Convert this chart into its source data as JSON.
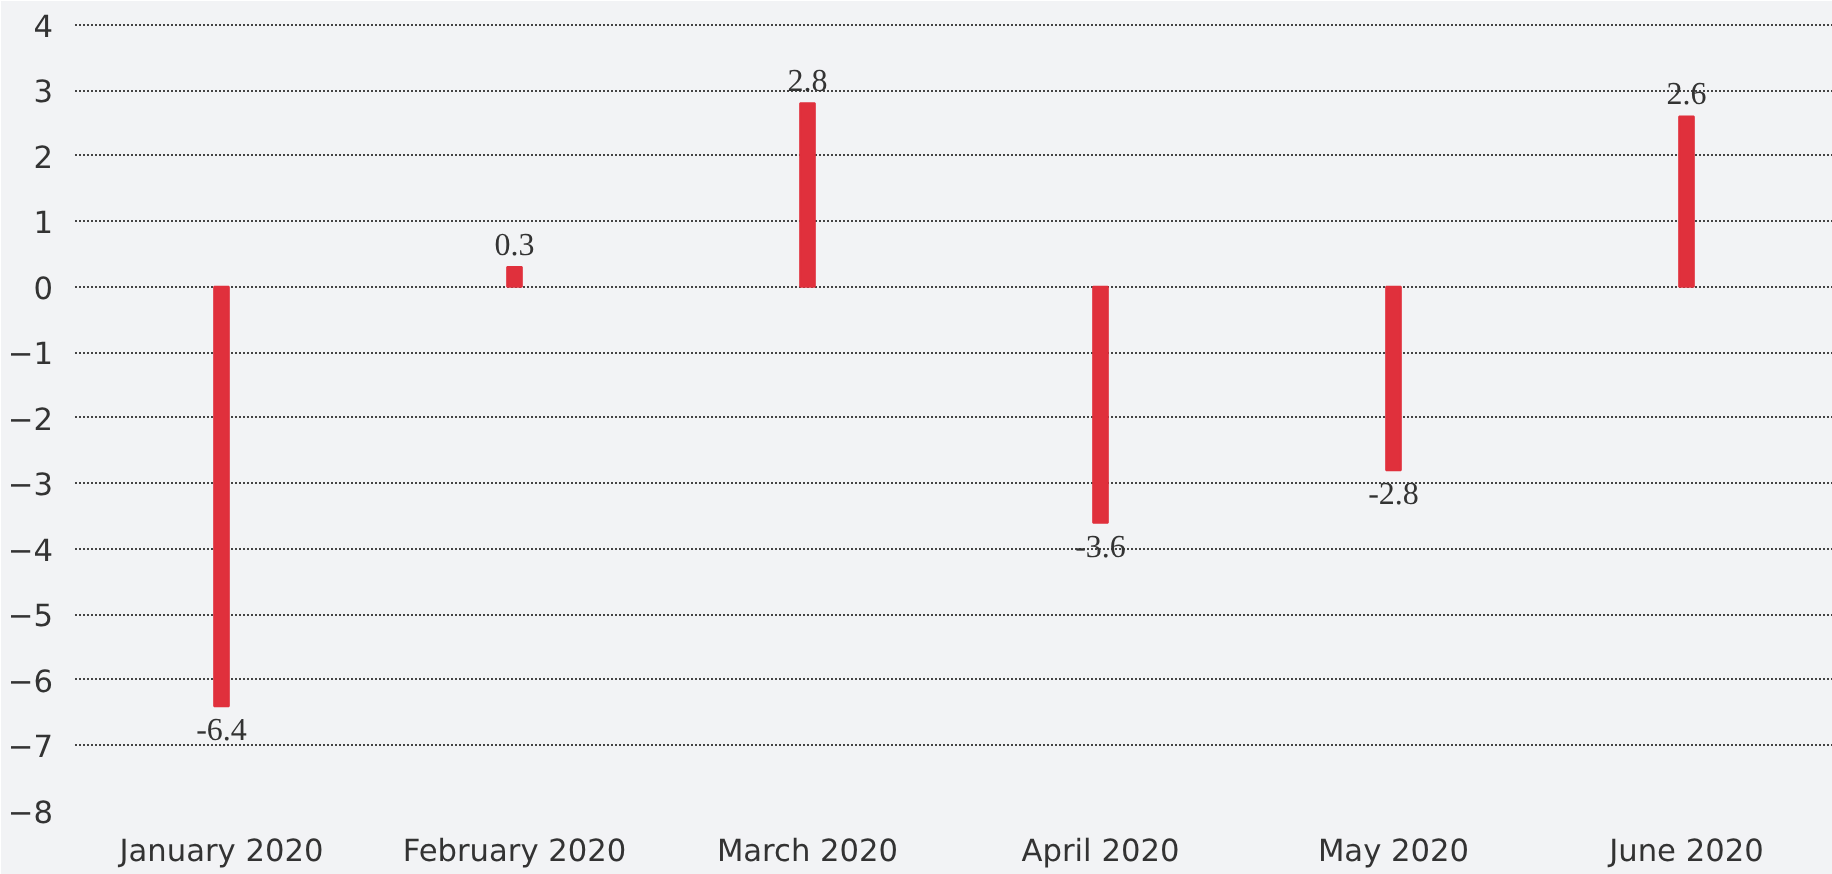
{
  "chart_data": {
    "type": "bar",
    "categories": [
      "January 2020",
      "February 2020",
      "March 2020",
      "April 2020",
      "May 2020",
      "June 2020"
    ],
    "values": [
      -6.4,
      0.3,
      2.8,
      -3.6,
      -2.8,
      2.6
    ],
    "color": "#e0303c",
    "ylim": [
      -8,
      4.3
    ],
    "yticks": [
      -8,
      -7,
      -6,
      -5,
      -4,
      -3,
      -2,
      -1,
      0,
      1,
      2,
      3,
      4
    ],
    "grid": "y",
    "data_labels": true
  }
}
